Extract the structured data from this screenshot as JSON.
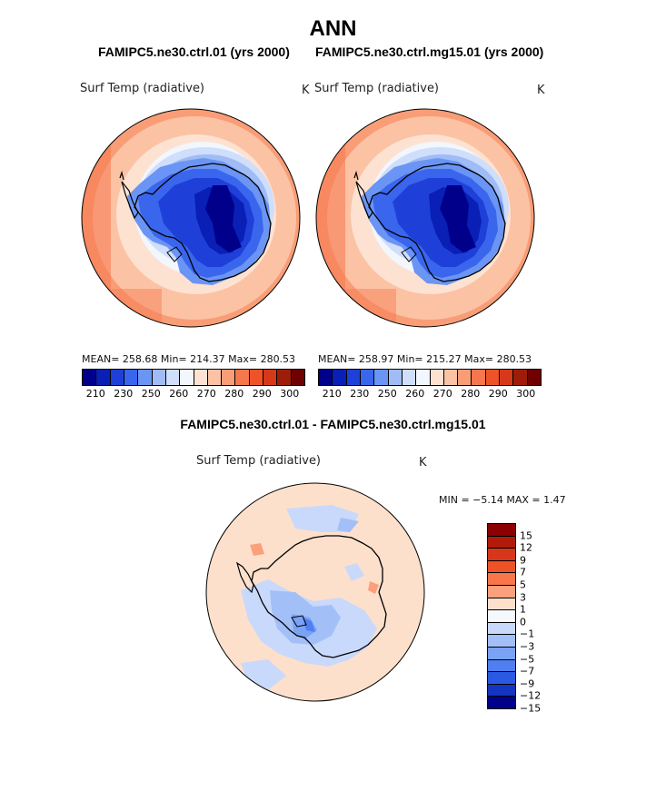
{
  "title": "ANN",
  "panels": [
    {
      "case": "FAMIPC5.ne30.ctrl.01 (yrs 2000)",
      "variable": "Surf Temp (radiative)",
      "units": "K",
      "stats": "MEAN= 258.68   Min= 214.37   Max= 280.53",
      "colorbar_ticks": [
        "210",
        "230",
        "250",
        "260",
        "270",
        "280",
        "290",
        "300"
      ]
    },
    {
      "case": "FAMIPC5.ne30.ctrl.mg15.01 (yrs 2000)",
      "variable": "Surf Temp (radiative)",
      "units": "K",
      "stats": "MEAN= 258.97   Min= 215.27   Max= 280.53",
      "colorbar_ticks": [
        "210",
        "230",
        "250",
        "260",
        "270",
        "280",
        "290",
        "300"
      ]
    }
  ],
  "diff": {
    "title": "FAMIPC5.ne30.ctrl.01 - FAMIPC5.ne30.ctrl.mg15.01",
    "variable": "Surf Temp (radiative)",
    "units": "K",
    "stats": "MIN =   −5.14  MAX =    1.47",
    "colorbar_labels": [
      "15",
      "12",
      "9",
      "7",
      "5",
      "3",
      "1",
      "0",
      "−1",
      "−3",
      "−5",
      "−7",
      "−9",
      "−12",
      "−15"
    ]
  },
  "colors": {
    "temp_scale": [
      "#00008b",
      "#0a1fb5",
      "#1f40d8",
      "#3a66ee",
      "#6a95f4",
      "#9fbcf7",
      "#cfdefa",
      "#f2f6fd",
      "#fde2d2",
      "#fbc2a4",
      "#f99d77",
      "#f6774d",
      "#ee5328",
      "#d6391a",
      "#a01c0a",
      "#6e0000"
    ],
    "diff_scale": [
      "#8b0000",
      "#b21a0a",
      "#d8361a",
      "#f05228",
      "#f8764a",
      "#fba07c",
      "#fde0cc",
      "#f5f8fd",
      "#c9d9fb",
      "#a2bff8",
      "#7aa3f6",
      "#4f7ff0",
      "#2a5ae4",
      "#1335c2",
      "#00008b"
    ]
  }
}
